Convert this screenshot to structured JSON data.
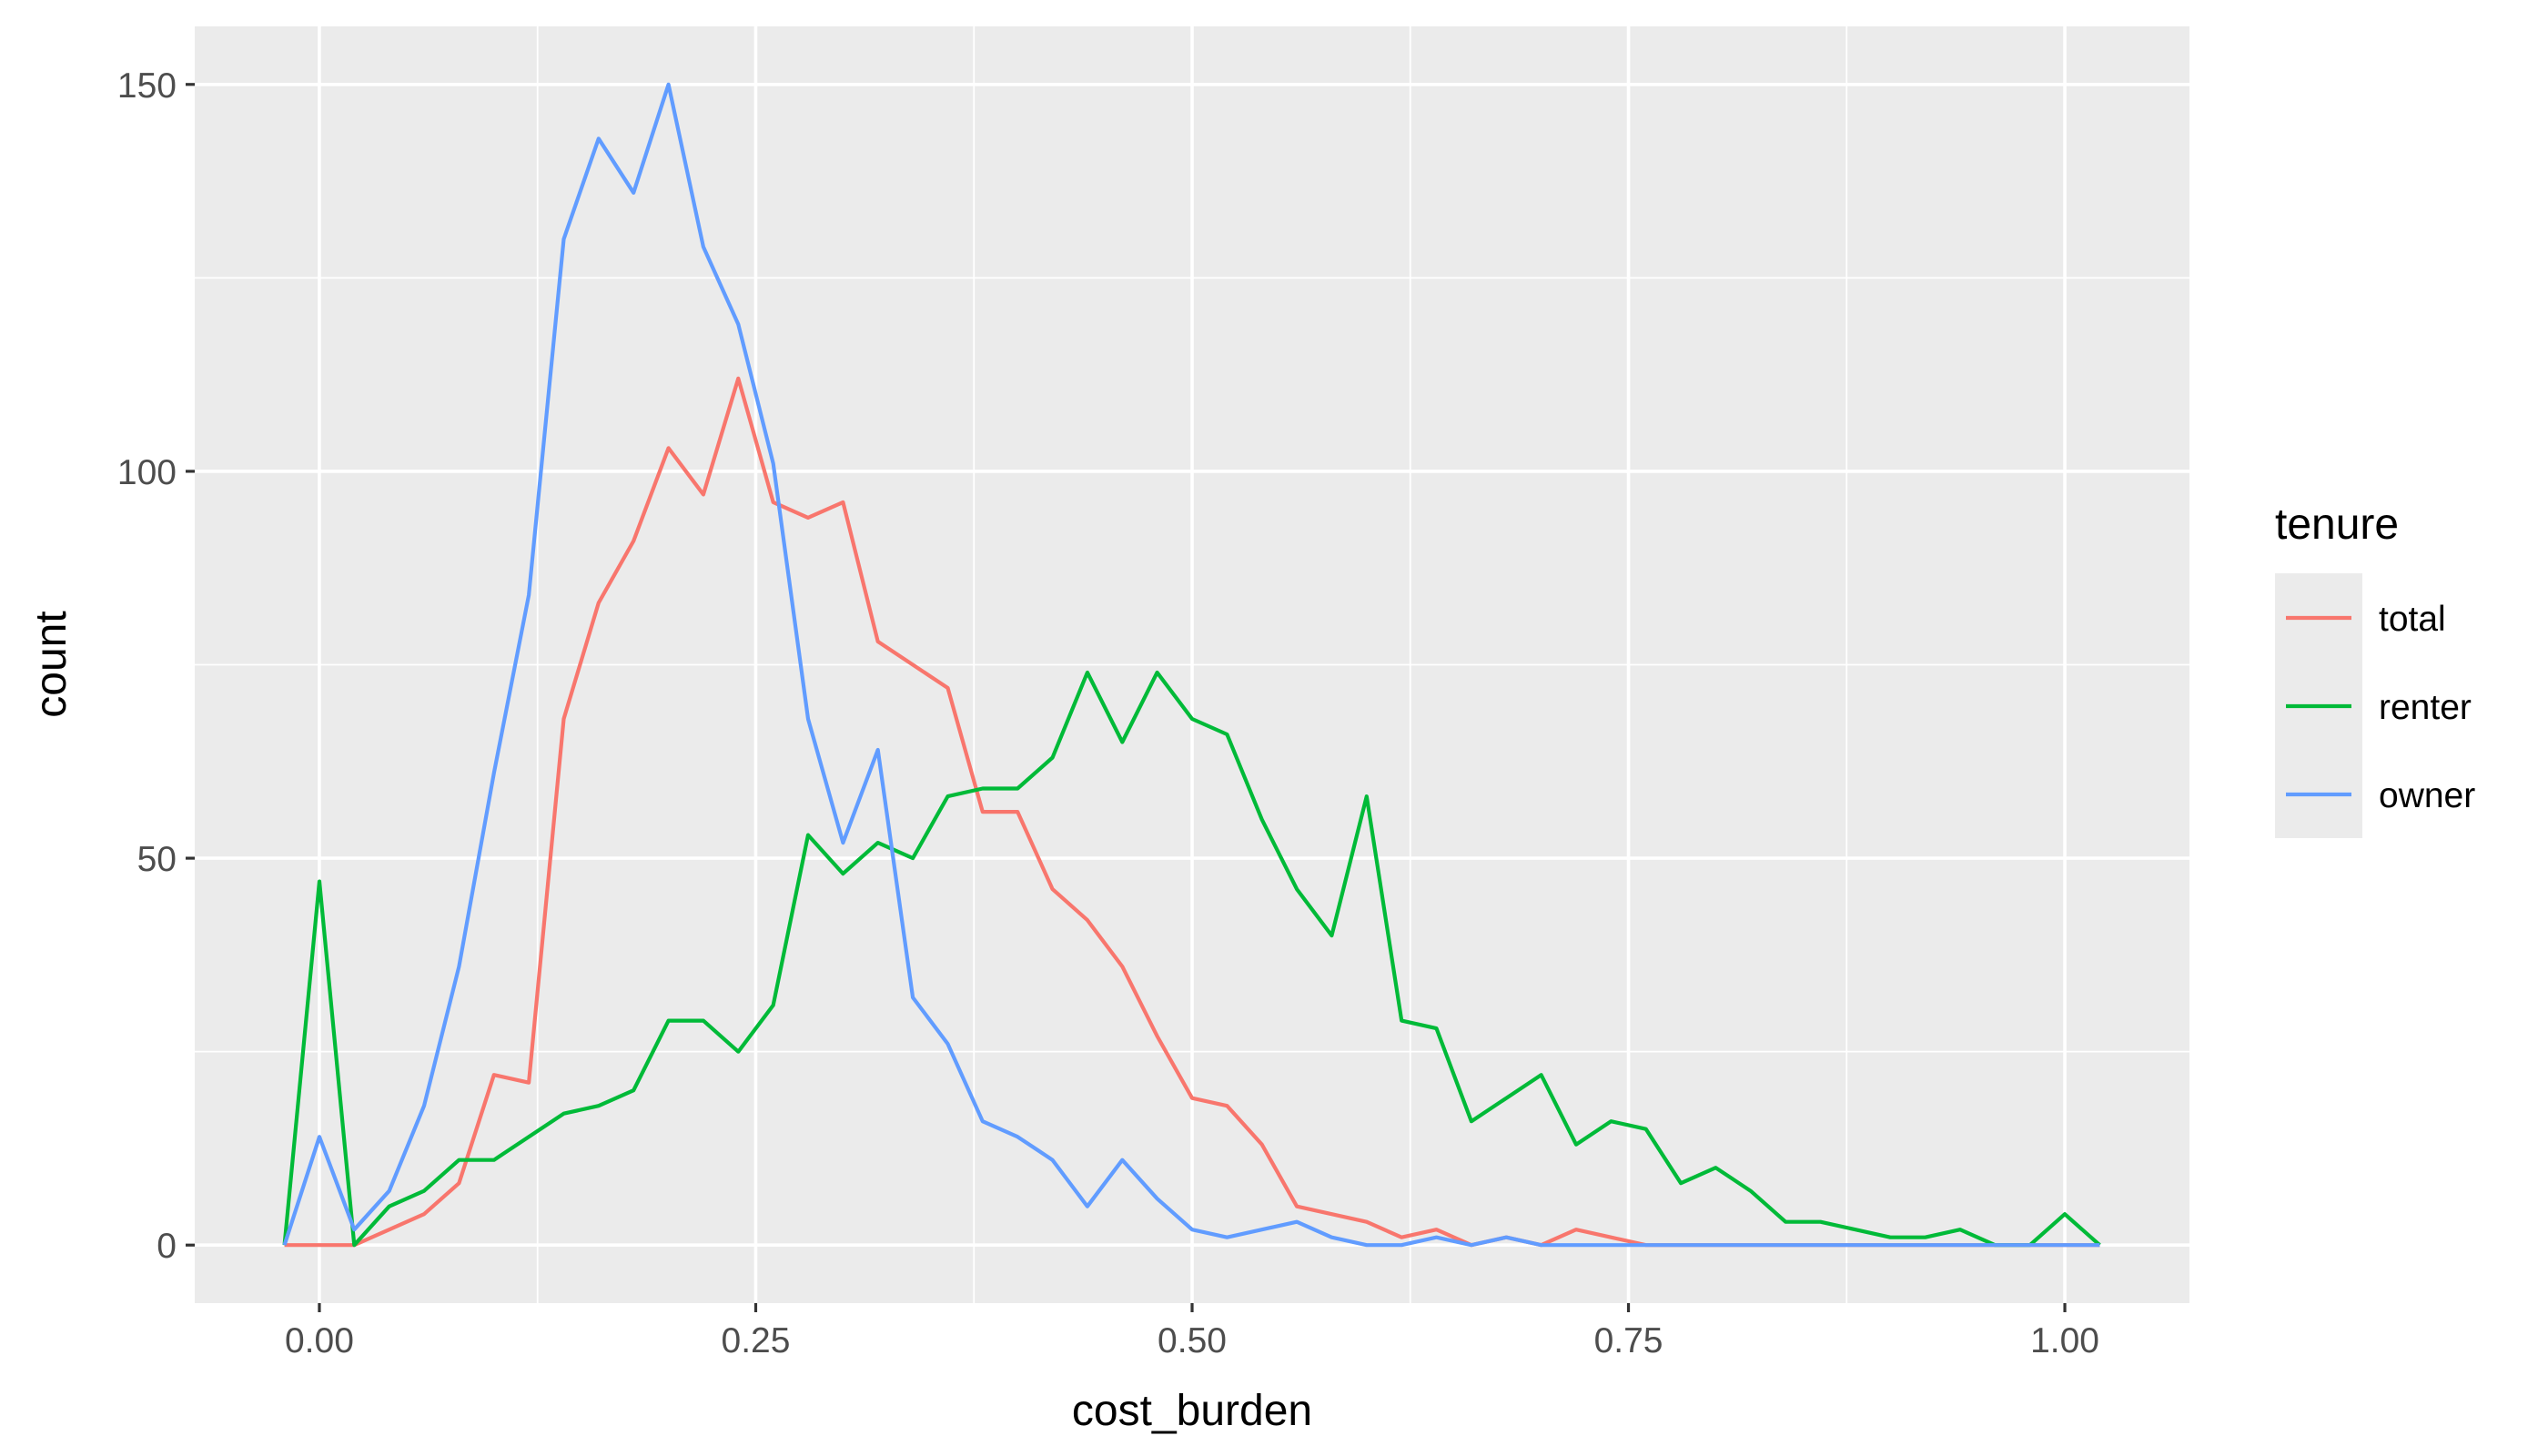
{
  "chart_data": {
    "type": "line",
    "xlabel": "cost_burden",
    "ylabel": "count",
    "xlim": [
      -0.0714,
      1.0714
    ],
    "ylim": [
      -7.5,
      157.5
    ],
    "x_ticks": [
      0.0,
      0.25,
      0.5,
      0.75,
      1.0
    ],
    "x_tick_labels": [
      "0.00",
      "0.25",
      "0.50",
      "0.75",
      "1.00"
    ],
    "y_ticks": [
      0,
      50,
      100,
      150
    ],
    "y_tick_labels": [
      "0",
      "50",
      "100",
      "150"
    ],
    "grid": true,
    "background": "#ebebeb",
    "legend": {
      "title": "tenure",
      "position": "right"
    },
    "x": [
      -0.02,
      0.0,
      0.02,
      0.04,
      0.06,
      0.08,
      0.1,
      0.12,
      0.14,
      0.16,
      0.18,
      0.2,
      0.22,
      0.24,
      0.26,
      0.28,
      0.3,
      0.32,
      0.34,
      0.36,
      0.38,
      0.4,
      0.42,
      0.44,
      0.46,
      0.48,
      0.5,
      0.52,
      0.54,
      0.56,
      0.58,
      0.6,
      0.62,
      0.64,
      0.66,
      0.68,
      0.7,
      0.72,
      0.74,
      0.76,
      0.78,
      0.8,
      0.82,
      0.84,
      0.86,
      0.88,
      0.9,
      0.92,
      0.94,
      0.96,
      0.98,
      1.0,
      1.02
    ],
    "series": [
      {
        "name": "total",
        "color": "#F8766D",
        "values": [
          0,
          0,
          0,
          2,
          4,
          8,
          22,
          21,
          68,
          83,
          91,
          103,
          97,
          112,
          96,
          94,
          96,
          78,
          75,
          72,
          56,
          56,
          46,
          42,
          36,
          27,
          19,
          18,
          13,
          5,
          4,
          3,
          1,
          2,
          0,
          1,
          0,
          2,
          1,
          0,
          0,
          0,
          0,
          0,
          0,
          0,
          0,
          0,
          0,
          0,
          0,
          0,
          0
        ]
      },
      {
        "name": "renter",
        "color": "#00BA38",
        "values": [
          0,
          47,
          0,
          5,
          7,
          11,
          11,
          14,
          17,
          18,
          20,
          29,
          29,
          25,
          31,
          53,
          48,
          52,
          50,
          58,
          59,
          59,
          63,
          74,
          65,
          74,
          68,
          66,
          55,
          46,
          40,
          58,
          29,
          28,
          16,
          19,
          22,
          13,
          16,
          15,
          8,
          10,
          7,
          3,
          3,
          2,
          1,
          1,
          2,
          0,
          0,
          4,
          0
        ]
      },
      {
        "name": "owner",
        "color": "#619CFF",
        "values": [
          0,
          14,
          2,
          7,
          18,
          36,
          61,
          84,
          130,
          143,
          136,
          150,
          129,
          119,
          101,
          68,
          52,
          64,
          32,
          26,
          16,
          14,
          11,
          5,
          11,
          6,
          2,
          1,
          2,
          3,
          1,
          0,
          0,
          1,
          0,
          1,
          0,
          0,
          0,
          0,
          0,
          0,
          0,
          0,
          0,
          0,
          0,
          0,
          0,
          0,
          0,
          0,
          0
        ]
      }
    ]
  }
}
